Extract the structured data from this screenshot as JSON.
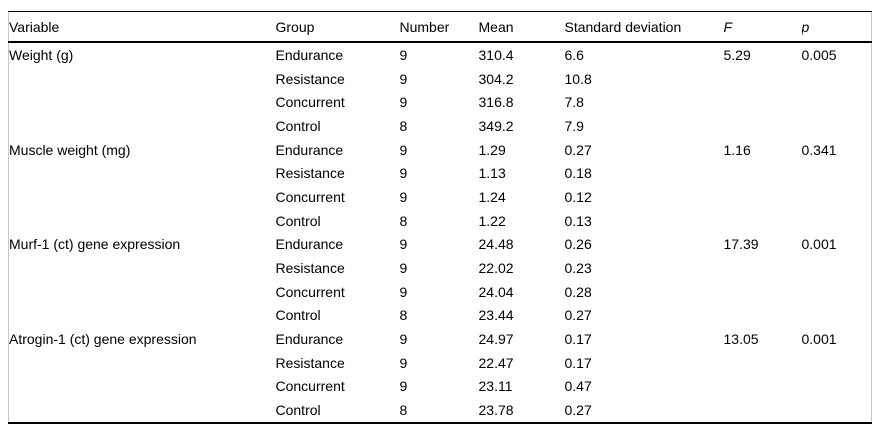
{
  "colors": {
    "background": "#ffffff",
    "text": "#000000",
    "rule": "#000000",
    "frame_edge": "#c9c9c9"
  },
  "table": {
    "columns": [
      "Variable",
      "Group",
      "Number",
      "Mean",
      "Standard deviation",
      "F",
      "p"
    ],
    "groups": [
      {
        "variable": "Weight (g)",
        "F": "5.29",
        "p": "0.005",
        "rows": [
          {
            "group": "Endurance",
            "number": "9",
            "mean": "310.4",
            "sd": "6.6"
          },
          {
            "group": "Resistance",
            "number": "9",
            "mean": "304.2",
            "sd": "10.8"
          },
          {
            "group": "Concurrent",
            "number": "9",
            "mean": "316.8",
            "sd": "7.8"
          },
          {
            "group": "Control",
            "number": "8",
            "mean": "349.2",
            "sd": "7.9"
          }
        ]
      },
      {
        "variable": "Muscle weight (mg)",
        "F": "1.16",
        "p": "0.341",
        "rows": [
          {
            "group": "Endurance",
            "number": "9",
            "mean": "1.29",
            "sd": "0.27"
          },
          {
            "group": "Resistance",
            "number": "9",
            "mean": "1.13",
            "sd": "0.18"
          },
          {
            "group": "Concurrent",
            "number": "9",
            "mean": "1.24",
            "sd": "0.12"
          },
          {
            "group": "Control",
            "number": "8",
            "mean": "1.22",
            "sd": "0.13"
          }
        ]
      },
      {
        "variable": "Murf-1 (ct) gene expression",
        "F": "17.39",
        "p": "0.001",
        "rows": [
          {
            "group": "Endurance",
            "number": "9",
            "mean": "24.48",
            "sd": "0.26"
          },
          {
            "group": "Resistance",
            "number": "9",
            "mean": "22.02",
            "sd": "0.23"
          },
          {
            "group": "Concurrent",
            "number": "9",
            "mean": "24.04",
            "sd": "0.28"
          },
          {
            "group": "Control",
            "number": "8",
            "mean": "23.44",
            "sd": "0.27"
          }
        ]
      },
      {
        "variable": "Atrogin-1 (ct) gene expression",
        "F": "13.05",
        "p": "0.001",
        "rows": [
          {
            "group": "Endurance",
            "number": "9",
            "mean": "24.97",
            "sd": "0.17"
          },
          {
            "group": "Resistance",
            "number": "9",
            "mean": "22.47",
            "sd": "0.17"
          },
          {
            "group": "Concurrent",
            "number": "9",
            "mean": "23.11",
            "sd": "0.47"
          },
          {
            "group": "Control",
            "number": "8",
            "mean": "23.78",
            "sd": "0.27"
          }
        ]
      }
    ]
  }
}
